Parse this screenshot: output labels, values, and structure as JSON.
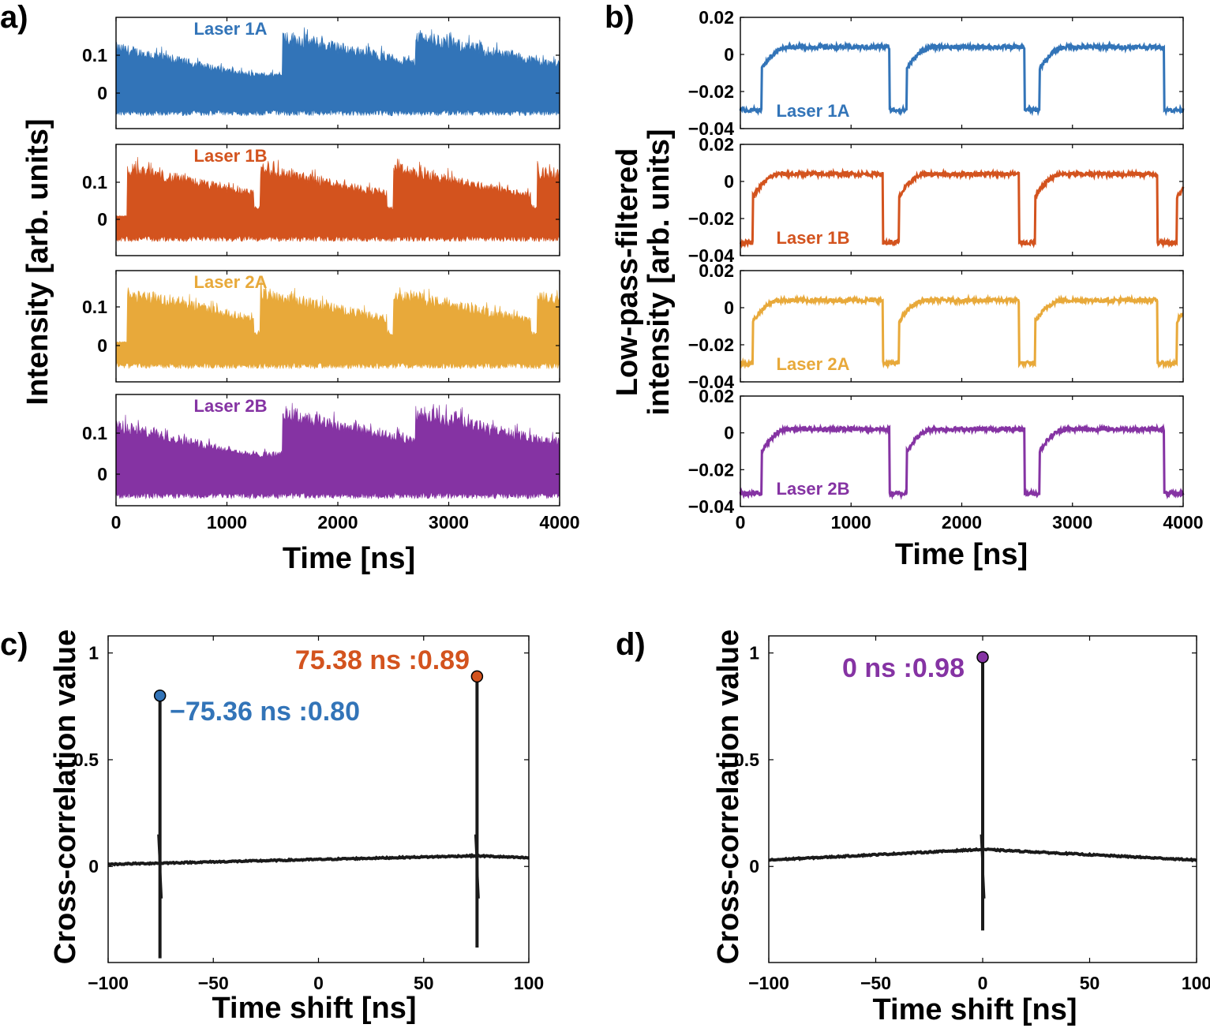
{
  "chart_data": [
    {
      "panel": "a)",
      "type": "line",
      "xlabel": "Time [ns]",
      "ylabel": "Intensity [arb. units]",
      "xlim": [
        0,
        4000
      ],
      "xticks": [
        "0",
        "1000",
        "2000",
        "3000",
        "4000"
      ],
      "ylim": [
        -0.07,
        0.18
      ],
      "yticks": [
        "0",
        "0.1"
      ],
      "series": [
        {
          "name": "Laser 1A",
          "color": "#3274B8",
          "dropouts_ns": [
            1500,
            2700
          ],
          "envelope_max": 0.17
        },
        {
          "name": "Laser 1B",
          "color": "#D3531E",
          "dropouts_ns": [
            100,
            1300,
            2500,
            3800
          ],
          "envelope_max": 0.16
        },
        {
          "name": "Laser 2A",
          "color": "#E8A93A",
          "dropouts_ns": [
            100,
            1300,
            2500,
            3800
          ],
          "envelope_max": 0.15
        },
        {
          "name": "Laser 2B",
          "color": "#8533A3",
          "dropouts_ns": [
            1500,
            2700
          ],
          "envelope_max": 0.16
        }
      ]
    },
    {
      "panel": "b)",
      "type": "line",
      "xlabel": "Time [ns]",
      "ylabel": "Low-pass-filtered intensity [arb. units]",
      "xlim": [
        0,
        4000
      ],
      "xticks": [
        "0",
        "1000",
        "2000",
        "3000",
        "4000"
      ],
      "ylim": [
        -0.04,
        0.02
      ],
      "yticks": [
        "0.02",
        "0",
        "−0.02",
        "−0.04"
      ],
      "series": [
        {
          "name": "Laser 1A",
          "color": "#3274B8",
          "high_level": 0.004,
          "low_level": -0.03,
          "dropouts": [
            [
              0,
              190
            ],
            [
              1350,
              1500
            ],
            [
              2570,
              2700
            ],
            [
              3830,
              4000
            ]
          ]
        },
        {
          "name": "Laser 1B",
          "color": "#D3531E",
          "high_level": 0.004,
          "low_level": -0.033,
          "dropouts": [
            [
              0,
              110
            ],
            [
              1290,
              1430
            ],
            [
              2520,
              2660
            ],
            [
              3770,
              3940
            ]
          ]
        },
        {
          "name": "Laser 2A",
          "color": "#E8A93A",
          "high_level": 0.004,
          "low_level": -0.03,
          "dropouts": [
            [
              0,
              110
            ],
            [
              1290,
              1430
            ],
            [
              2520,
              2660
            ],
            [
              3770,
              3940
            ]
          ]
        },
        {
          "name": "Laser 2B",
          "color": "#8533A3",
          "high_level": 0.002,
          "low_level": -0.033,
          "dropouts": [
            [
              0,
              190
            ],
            [
              1350,
              1500
            ],
            [
              2570,
              2700
            ],
            [
              3830,
              4000
            ]
          ]
        }
      ]
    },
    {
      "panel": "c)",
      "type": "line",
      "xlabel": "Time shift [ns]",
      "ylabel": "Cross-correlation value",
      "xlim": [
        -100,
        100
      ],
      "xticks": [
        "−100",
        "−50",
        "0",
        "50",
        "100"
      ],
      "ylim": [
        -0.45,
        1.08
      ],
      "yticks": [
        "0",
        "0.5",
        "1"
      ],
      "baseline": [
        [
          -100,
          0.01
        ],
        [
          75,
          0.05
        ],
        [
          100,
          0.04
        ]
      ],
      "spikes": [
        {
          "x": -75.36,
          "top": 0.8,
          "bottom": -0.43,
          "marker_color": "#3274B8"
        },
        {
          "x": 75.38,
          "top": 0.89,
          "bottom": -0.38,
          "marker_color": "#D3531E"
        }
      ],
      "annotations": [
        {
          "text": "−75.36 ns :0.80",
          "color": "#3274B8"
        },
        {
          "text": "75.38 ns :0.89",
          "color": "#D3531E"
        }
      ]
    },
    {
      "panel": "d)",
      "type": "line",
      "xlabel": "Time shift [ns]",
      "ylabel": "Cross-correlation value",
      "xlim": [
        -100,
        100
      ],
      "xticks": [
        "−100",
        "−50",
        "0",
        "50",
        "100"
      ],
      "ylim": [
        -0.45,
        1.08
      ],
      "yticks": [
        "0",
        "0.5",
        "1"
      ],
      "baseline": [
        [
          -100,
          0.03
        ],
        [
          0,
          0.08
        ],
        [
          100,
          0.03
        ]
      ],
      "spikes": [
        {
          "x": 0,
          "top": 0.98,
          "bottom": -0.3,
          "marker_color": "#8533A3"
        }
      ],
      "annotations": [
        {
          "text": "0 ns :0.98",
          "color": "#8533A3"
        }
      ]
    }
  ]
}
